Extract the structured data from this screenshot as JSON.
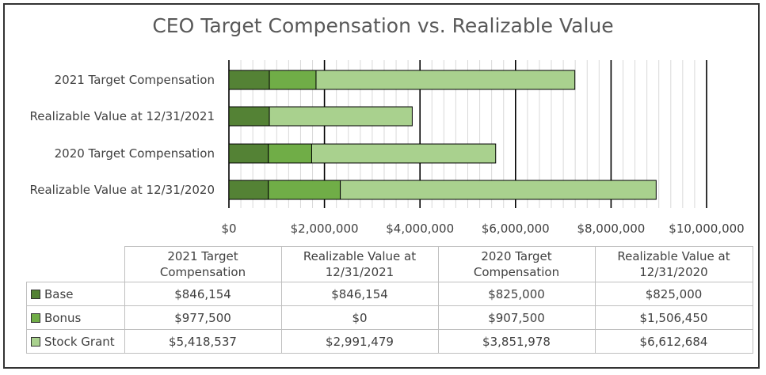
{
  "chart_data": {
    "type": "bar",
    "orientation": "horizontal",
    "stacked": true,
    "title": "CEO Target Compensation vs. Realizable Value",
    "categories": [
      "2021 Target Compensation",
      "Realizable Value at 12/31/2021",
      "2020 Target Compensation",
      "Realizable Value at 12/31/2020"
    ],
    "series": [
      {
        "name": "Base",
        "color": "#548235",
        "values": [
          846154,
          846154,
          825000,
          825000
        ]
      },
      {
        "name": "Bonus",
        "color": "#70ad47",
        "values": [
          977500,
          0,
          907500,
          1506450
        ]
      },
      {
        "name": "Stock Grant",
        "color": "#a9d18e",
        "values": [
          5418537,
          2991479,
          3851978,
          6612684
        ]
      }
    ],
    "xlim": [
      0,
      10000000
    ],
    "x_ticks": [
      "$0",
      "$2,000,000",
      "$4,000,000",
      "$6,000,000",
      "$8,000,000",
      "$10,000,000"
    ],
    "grid": true,
    "legend": "data table below chart"
  },
  "table": {
    "headers": [
      [
        "2021 Target",
        "Compensation"
      ],
      [
        "Realizable Value at",
        "12/31/2021"
      ],
      [
        "2020 Target",
        "Compensation"
      ],
      [
        "Realizable Value at",
        "12/31/2020"
      ]
    ],
    "rows": [
      {
        "label": "Base",
        "color": "#548235",
        "cells": [
          "$846,154",
          "$846,154",
          "$825,000",
          "$825,000"
        ]
      },
      {
        "label": "Bonus",
        "color": "#70ad47",
        "cells": [
          "$977,500",
          "$0",
          "$907,500",
          "$1,506,450"
        ]
      },
      {
        "label": "Stock Grant",
        "color": "#a9d18e",
        "cells": [
          "$5,418,537",
          "$2,991,479",
          "$3,851,978",
          "$6,612,684"
        ]
      }
    ]
  }
}
